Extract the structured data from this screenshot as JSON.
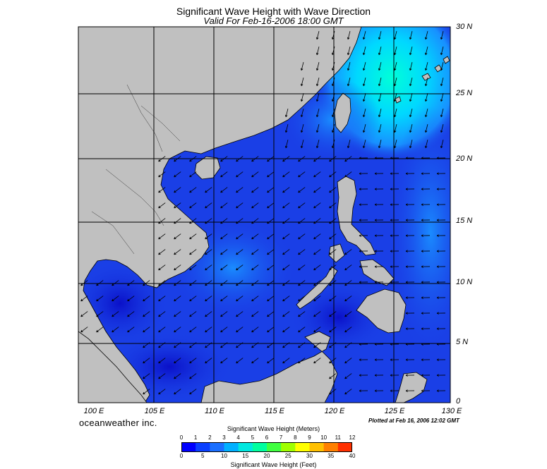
{
  "header": {
    "title": "Significant Wave Height with Wave Direction",
    "subtitle": "Valid For Feb-16-2006 18:00 GMT"
  },
  "map": {
    "lat_labels": [
      "30 N",
      "25 N",
      "20 N",
      "15 N",
      "10 N",
      "5 N",
      "0"
    ],
    "lon_labels": [
      "100 E",
      "105 E",
      "110 E",
      "115 E",
      "120 E",
      "125 E",
      "130 E"
    ],
    "land_color": "#c0c0c0",
    "ocean_base_color": "#1a3fe6",
    "high_wave_color": "#00ffd8"
  },
  "footer": {
    "brand": "oceanweather inc.",
    "plotted": "Plotted at Feb 16, 2006 12:02 GMT"
  },
  "colorbar": {
    "title_meters": "Significant Wave Height (Meters)",
    "title_feet": "Significant Wave Height (Feet)",
    "meter_ticks": [
      "0",
      "1",
      "2",
      "3",
      "4",
      "5",
      "6",
      "7",
      "8",
      "9",
      "10",
      "11",
      "12"
    ],
    "feet_ticks": [
      "0",
      "5",
      "10",
      "15",
      "20",
      "25",
      "30",
      "35",
      "40"
    ],
    "colors": [
      "#0000ff",
      "#0a40ff",
      "#1a6fff",
      "#00b0ff",
      "#00e8e0",
      "#00ffa0",
      "#40ff40",
      "#a0ff00",
      "#ffff00",
      "#ffc000",
      "#ff8000",
      "#ff3000"
    ]
  }
}
